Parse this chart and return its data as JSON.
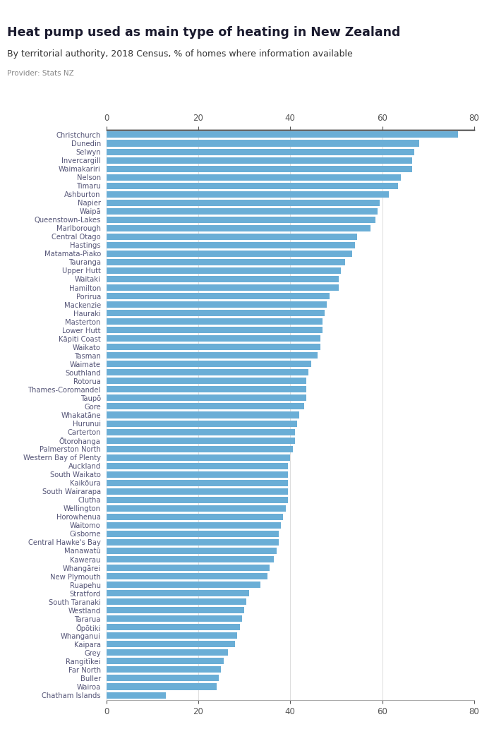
{
  "title": "Heat pump used as main type of heating in New Zealand",
  "subtitle": "By territorial authority, 2018 Census, % of homes where information available",
  "provider": "Provider: Stats NZ",
  "bar_color": "#6aaed6",
  "background_color": "#ffffff",
  "xlim": [
    0,
    80
  ],
  "xticks": [
    0,
    20,
    40,
    60,
    80
  ],
  "logo_color": "#3a5897",
  "categories": [
    "Christchurch",
    "Dunedin",
    "Selwyn",
    "Invercargill",
    "Waimakariri",
    "Nelson",
    "Timaru",
    "Ashburton",
    "Napier",
    "Waipā",
    "Queenstown-Lakes",
    "Marlborough",
    "Central Otago",
    "Hastings",
    "Matamata-Piako",
    "Tauranga",
    "Upper Hutt",
    "Waitaki",
    "Hamilton",
    "Porirua",
    "Mackenzie",
    "Hauraki",
    "Masterton",
    "Lower Hutt",
    "Kāpiti Coast",
    "Waikato",
    "Tasman",
    "Waimate",
    "Southland",
    "Rotorua",
    "Thames-Coromandel",
    "Taupō",
    "Gore",
    "Whakatāne",
    "Hurunui",
    "Carterton",
    "Ōtorohanga",
    "Palmerston North",
    "Western Bay of Plenty",
    "Auckland",
    "South Waikato",
    "Kaikōura",
    "South Wairarapa",
    "Clutha",
    "Wellington",
    "Horowhenua",
    "Waitomo",
    "Gisborne",
    "Central Hawke's Bay",
    "Manawatū",
    "Kawerau",
    "Whangārei",
    "New Plymouth",
    "Ruapehu",
    "Stratford",
    "South Taranaki",
    "Westland",
    "Tararua",
    "Ōpōtiki",
    "Whanganui",
    "Kaipara",
    "Grey",
    "Rangitīkei",
    "Far North",
    "Buller",
    "Wairoa",
    "Chatham Islands"
  ],
  "values": [
    76.5,
    68.0,
    67.0,
    66.5,
    66.5,
    64.0,
    63.5,
    61.5,
    59.5,
    59.0,
    58.5,
    57.5,
    54.5,
    54.0,
    53.5,
    52.0,
    51.0,
    50.5,
    50.5,
    48.5,
    48.0,
    47.5,
    47.0,
    47.0,
    46.5,
    46.5,
    46.0,
    44.5,
    44.0,
    43.5,
    43.5,
    43.5,
    43.0,
    42.0,
    41.5,
    41.0,
    41.0,
    40.5,
    40.0,
    39.5,
    39.5,
    39.5,
    39.5,
    39.5,
    39.0,
    38.5,
    38.0,
    37.5,
    37.5,
    37.0,
    36.5,
    35.5,
    35.0,
    33.5,
    31.0,
    30.5,
    30.0,
    29.5,
    29.0,
    28.5,
    28.0,
    26.5,
    25.5,
    25.0,
    24.5,
    24.0,
    13.0
  ]
}
